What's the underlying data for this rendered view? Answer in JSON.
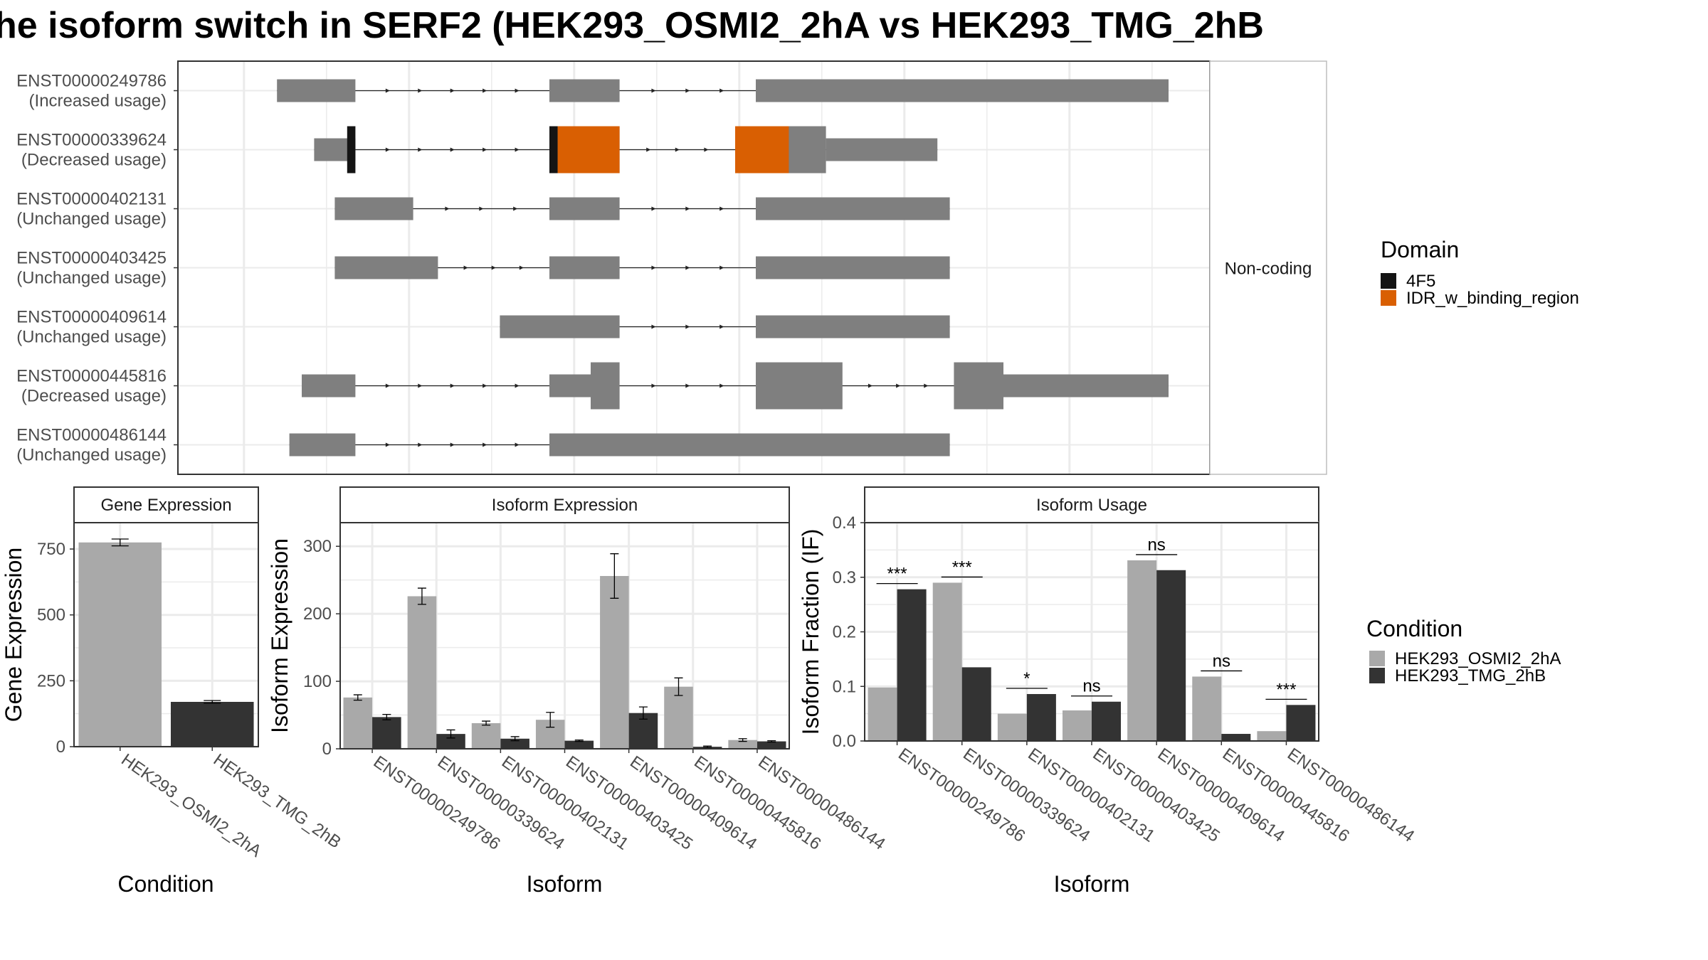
{
  "title": "he isoform switch in SERF2 (HEK293_OSMI2_2hA vs HEK293_TMG_2hB",
  "colors": {
    "exon": "#7f7f7f",
    "domain_4F5": "#141414",
    "domain_IDR": "#d95f02",
    "cond_A": "#a9a9a9",
    "cond_B": "#333333",
    "grid": "#ebebeb",
    "panel_border": "#333333",
    "strip_bg": "#ffffff"
  },
  "chart_data": [
    {
      "type": "gene-structure",
      "side_strip_label": "Non-coding",
      "x_range": [
        0,
        100
      ],
      "transcripts": [
        {
          "id": "ENST00000249786",
          "usage": "(Increased usage)",
          "segments": [
            {
              "s": 4,
              "e": 13.5,
              "w": "narrow"
            },
            {
              "s": 37,
              "e": 45.5,
              "w": "narrow"
            },
            {
              "s": 62,
              "e": 112,
              "w": "narrow"
            }
          ],
          "domains": []
        },
        {
          "id": "ENST00000339624",
          "usage": "(Decreased usage)",
          "segments": [
            {
              "s": 8.5,
              "e": 13.5,
              "w": "narrow"
            },
            {
              "s": 37,
              "e": 45.5,
              "w": "wide"
            },
            {
              "s": 59.5,
              "e": 70.5,
              "w": "wide"
            },
            {
              "s": 70.5,
              "e": 84,
              "w": "narrow"
            }
          ],
          "domains": [
            {
              "s": 12.5,
              "e": 13.5,
              "name": "4F5"
            },
            {
              "s": 37,
              "e": 38,
              "name": "4F5"
            },
            {
              "s": 38,
              "e": 45.5,
              "name": "IDR_w_binding_region"
            },
            {
              "s": 59.5,
              "e": 66,
              "name": "IDR_w_binding_region"
            }
          ]
        },
        {
          "id": "ENST00000402131",
          "usage": "(Unchanged usage)",
          "segments": [
            {
              "s": 11,
              "e": 20.5,
              "w": "narrow"
            },
            {
              "s": 37,
              "e": 45.5,
              "w": "narrow"
            },
            {
              "s": 62,
              "e": 85.5,
              "w": "narrow"
            }
          ],
          "domains": []
        },
        {
          "id": "ENST00000403425",
          "usage": "(Unchanged usage)",
          "segments": [
            {
              "s": 11,
              "e": 23.5,
              "w": "narrow"
            },
            {
              "s": 37,
              "e": 45.5,
              "w": "narrow"
            },
            {
              "s": 62,
              "e": 85.5,
              "w": "narrow"
            }
          ],
          "domains": []
        },
        {
          "id": "ENST00000409614",
          "usage": "(Unchanged usage)",
          "segments": [
            {
              "s": 31,
              "e": 45.5,
              "w": "narrow"
            },
            {
              "s": 62,
              "e": 85.5,
              "w": "narrow"
            }
          ],
          "domains": []
        },
        {
          "id": "ENST00000445816",
          "usage": "(Decreased usage)",
          "segments": [
            {
              "s": 7,
              "e": 13.5,
              "w": "narrow"
            },
            {
              "s": 37,
              "e": 42,
              "w": "narrow"
            },
            {
              "s": 42,
              "e": 45.5,
              "w": "wide"
            },
            {
              "s": 62,
              "e": 72.5,
              "w": "wide"
            },
            {
              "s": 86,
              "e": 92,
              "w": "wide"
            },
            {
              "s": 92,
              "e": 112,
              "w": "narrow"
            }
          ],
          "domains": []
        },
        {
          "id": "ENST00000486144",
          "usage": "(Unchanged usage)",
          "segments": [
            {
              "s": 5.5,
              "e": 13.5,
              "w": "narrow"
            },
            {
              "s": 37,
              "e": 85.5,
              "w": "narrow"
            }
          ],
          "domains": []
        }
      ],
      "legend": {
        "title": "Domain",
        "entries": [
          "4F5",
          "IDR_w_binding_region"
        ]
      }
    },
    {
      "type": "bar",
      "strip_title": "Gene Expression",
      "xlabel": "Condition",
      "ylabel": "Gene Expression",
      "ylim": [
        0,
        850
      ],
      "yticks": [
        0,
        250,
        500,
        750
      ],
      "categories": [
        "HEK293_OSMI2_2hA",
        "HEK293_TMG_2hB"
      ],
      "values": [
        775,
        170
      ],
      "errors": [
        13,
        5
      ]
    },
    {
      "type": "bar",
      "strip_title": "Isoform Expression",
      "xlabel": "Isoform",
      "ylabel": "Isoform Expression",
      "ylim": [
        0,
        335
      ],
      "yticks": [
        0,
        100,
        200,
        300
      ],
      "categories": [
        "ENST00000249786",
        "ENST00000339624",
        "ENST00000402131",
        "ENST00000403425",
        "ENST00000409614",
        "ENST00000445816",
        "ENST00000486144"
      ],
      "series": [
        {
          "name": "HEK293_OSMI2_2hA",
          "values": [
            76,
            226,
            38,
            43,
            256,
            92,
            13
          ],
          "errors": [
            4,
            12,
            3,
            11,
            33,
            13,
            2
          ]
        },
        {
          "name": "HEK293_TMG_2hB",
          "values": [
            47,
            22,
            15,
            12,
            53,
            3,
            11
          ],
          "errors": [
            4,
            6,
            3,
            1,
            9,
            1,
            1
          ]
        }
      ]
    },
    {
      "type": "bar",
      "strip_title": "Isoform Usage",
      "xlabel": "Isoform",
      "ylabel": "Isoform Fraction (IF)",
      "ylim": [
        0,
        0.4
      ],
      "yticks": [
        0.0,
        0.1,
        0.2,
        0.3,
        0.4
      ],
      "categories": [
        "ENST00000249786",
        "ENST00000339624",
        "ENST00000402131",
        "ENST00000403425",
        "ENST00000409614",
        "ENST00000445816",
        "ENST00000486144"
      ],
      "series": [
        {
          "name": "HEK293_OSMI2_2hA",
          "values": [
            0.098,
            0.29,
            0.05,
            0.056,
            0.331,
            0.118,
            0.018
          ]
        },
        {
          "name": "HEK293_TMG_2hB",
          "values": [
            0.278,
            0.135,
            0.086,
            0.072,
            0.313,
            0.013,
            0.066
          ]
        }
      ],
      "significance": [
        "***",
        "***",
        "*",
        "ns",
        "ns",
        "ns",
        "***"
      ],
      "legend": {
        "title": "Condition",
        "entries": [
          "HEK293_OSMI2_2hA",
          "HEK293_TMG_2hB"
        ]
      }
    }
  ]
}
